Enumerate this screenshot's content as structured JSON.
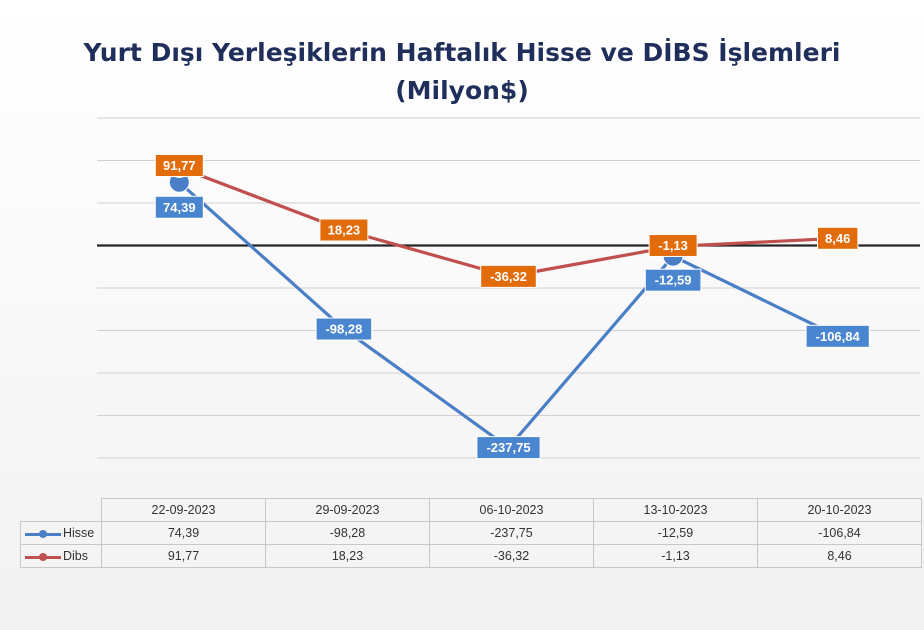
{
  "title_line1": "Yurt Dışı Yerleşiklerin Haftalık Hisse ve DİBS İşlemleri",
  "title_line2": "(Milyon$)",
  "chart_data": {
    "type": "line",
    "categories": [
      "22-09-2023",
      "29-09-2023",
      "06-10-2023",
      "13-10-2023",
      "20-10-2023"
    ],
    "series": [
      {
        "name": "Hisse",
        "color": "#4a7ec7",
        "label_color": "#4a86cf",
        "values": [
          74.39,
          -98.28,
          -237.75,
          -12.59,
          -106.84
        ],
        "labels": [
          "74,39",
          "-98,28",
          "-237,75",
          "-12,59",
          "-106,84"
        ]
      },
      {
        "name": "Dibs",
        "color": "#c0504d",
        "label_color": "#e36c0a",
        "values": [
          91.77,
          18.23,
          -36.32,
          -1.13,
          8.46
        ],
        "labels": [
          "91,77",
          "18,23",
          "-36,32",
          "-1,13",
          "8,46"
        ]
      }
    ],
    "ylim": [
      -250,
      150
    ],
    "grid": true,
    "legend": "data-table",
    "zero_line": true
  }
}
